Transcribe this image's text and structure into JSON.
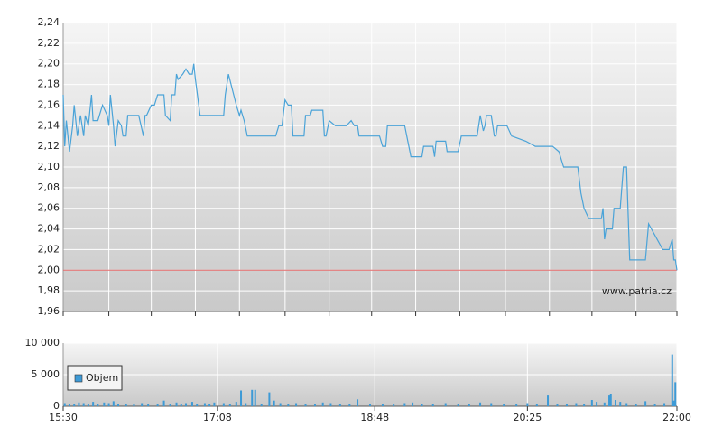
{
  "chart_data": [
    {
      "type": "line",
      "x": [
        "15:30",
        "15:31",
        "15:32",
        "15:34",
        "15:36",
        "15:37",
        "15:39",
        "15:41",
        "15:43",
        "15:44",
        "15:46",
        "15:48",
        "15:49",
        "15:51",
        "15:52",
        "15:55",
        "15:58",
        "15:59",
        "16:00",
        "16:02",
        "16:03",
        "16:05",
        "16:07",
        "16:08",
        "16:10",
        "16:11",
        "16:18",
        "16:21",
        "16:22",
        "16:23",
        "16:26",
        "16:28",
        "16:30",
        "16:34",
        "16:35",
        "16:38",
        "16:39",
        "16:41",
        "16:42",
        "16:43",
        "16:46",
        "16:48",
        "16:50",
        "16:52",
        "16:53",
        "16:54",
        "16:57",
        "17:12",
        "17:13",
        "17:15",
        "17:20",
        "17:22",
        "17:23",
        "17:25",
        "17:27",
        "17:45",
        "17:47",
        "17:49",
        "17:51",
        "17:53",
        "17:55",
        "17:56",
        "18:03",
        "18:04",
        "18:07",
        "18:08",
        "18:15",
        "18:16",
        "18:17",
        "18:19",
        "18:23",
        "18:30",
        "18:33",
        "18:35",
        "18:37",
        "18:38",
        "18:51",
        "18:53",
        "18:55",
        "18:56",
        "19:07",
        "19:11",
        "19:18",
        "19:19",
        "19:25",
        "19:26",
        "19:27",
        "19:33",
        "19:34",
        "19:41",
        "19:43",
        "19:53",
        "19:55",
        "19:57",
        "19:58",
        "19:59",
        "20:02",
        "20:04",
        "20:05",
        "20:06",
        "20:12",
        "20:15",
        "20:24",
        "20:30",
        "20:34",
        "20:41",
        "20:45",
        "20:48",
        "20:57",
        "20:59",
        "21:01",
        "21:04",
        "21:12",
        "21:13",
        "21:14",
        "21:15",
        "21:19",
        "21:20",
        "21:24",
        "21:26",
        "21:28",
        "21:30",
        "21:40",
        "21:42",
        "21:51",
        "21:55",
        "21:57",
        "21:58",
        "21:59",
        "22:00"
      ],
      "values": [
        2.17,
        2.12,
        2.145,
        2.115,
        2.14,
        2.16,
        2.13,
        2.15,
        2.13,
        2.15,
        2.14,
        2.17,
        2.145,
        2.145,
        2.145,
        2.16,
        2.15,
        2.14,
        2.17,
        2.14,
        2.12,
        2.145,
        2.14,
        2.13,
        2.13,
        2.15,
        2.15,
        2.13,
        2.15,
        2.15,
        2.16,
        2.16,
        2.17,
        2.17,
        2.15,
        2.145,
        2.17,
        2.17,
        2.19,
        2.185,
        2.19,
        2.195,
        2.19,
        2.19,
        2.2,
        2.185,
        2.15,
        2.15,
        2.17,
        2.19,
        2.16,
        2.15,
        2.155,
        2.145,
        2.13,
        2.13,
        2.14,
        2.14,
        2.165,
        2.16,
        2.16,
        2.13,
        2.13,
        2.15,
        2.15,
        2.155,
        2.155,
        2.13,
        2.13,
        2.145,
        2.14,
        2.14,
        2.145,
        2.14,
        2.14,
        2.13,
        2.13,
        2.12,
        2.12,
        2.14,
        2.14,
        2.11,
        2.11,
        2.12,
        2.12,
        2.11,
        2.125,
        2.125,
        2.115,
        2.115,
        2.13,
        2.13,
        2.15,
        2.135,
        2.14,
        2.15,
        2.15,
        2.13,
        2.13,
        2.14,
        2.14,
        2.13,
        2.125,
        2.12,
        2.12,
        2.12,
        2.115,
        2.1,
        2.1,
        2.075,
        2.06,
        2.05,
        2.05,
        2.06,
        2.03,
        2.04,
        2.04,
        2.06,
        2.06,
        2.1,
        2.1,
        2.01,
        2.01,
        2.045,
        2.02,
        2.02,
        2.03,
        2.01,
        2.01,
        2.0
      ],
      "color": "#4aa3d8",
      "xlim": [
        "15:30",
        "22:00"
      ],
      "xticks": [
        "15:30",
        "15:59",
        "16:26",
        "16:54",
        "17:22",
        "17:51",
        "18:19",
        "18:46",
        "19:14",
        "19:42",
        "20:11",
        "20:39",
        "21:06",
        "21:34",
        "22:00"
      ],
      "ylim": [
        1.96,
        2.24
      ],
      "yticks": [
        {
          "value": 1.96,
          "label": "1,96"
        },
        {
          "value": 1.98,
          "label": "1,98"
        },
        {
          "value": 2.0,
          "label": "2,00"
        },
        {
          "value": 2.02,
          "label": "2,02"
        },
        {
          "value": 2.04,
          "label": "2,04"
        },
        {
          "value": 2.06,
          "label": "2,06"
        },
        {
          "value": 2.08,
          "label": "2,08"
        },
        {
          "value": 2.1,
          "label": "2,10"
        },
        {
          "value": 2.12,
          "label": "2,12"
        },
        {
          "value": 2.14,
          "label": "2,14"
        },
        {
          "value": 2.16,
          "label": "2,16"
        },
        {
          "value": 2.18,
          "label": "2,18"
        },
        {
          "value": 2.2,
          "label": "2,20"
        },
        {
          "value": 2.22,
          "label": "2,22"
        },
        {
          "value": 2.24,
          "label": "2,24"
        }
      ],
      "reference_line": {
        "value": 2.0,
        "color": "#e06666"
      },
      "grid": true,
      "watermark": "www.patria.cz"
    },
    {
      "type": "bar",
      "x": [
        "15:31",
        "15:34",
        "15:37",
        "15:40",
        "15:43",
        "15:46",
        "15:49",
        "15:52",
        "15:56",
        "15:59",
        "16:02",
        "16:05",
        "16:10",
        "16:15",
        "16:20",
        "16:24",
        "16:30",
        "16:34",
        "16:38",
        "16:42",
        "16:45",
        "16:48",
        "16:52",
        "16:55",
        "17:00",
        "17:03",
        "17:06",
        "17:12",
        "17:16",
        "17:20",
        "17:23",
        "17:26",
        "17:30",
        "17:32",
        "17:36",
        "17:41",
        "17:44",
        "17:48",
        "17:53",
        "17:58",
        "18:04",
        "18:10",
        "18:15",
        "18:20",
        "18:26",
        "18:32",
        "18:37",
        "18:45",
        "18:53",
        "19:00",
        "19:07",
        "19:12",
        "19:18",
        "19:25",
        "19:33",
        "19:41",
        "19:48",
        "19:55",
        "20:02",
        "20:10",
        "20:18",
        "20:25",
        "20:31",
        "20:38",
        "20:44",
        "20:50",
        "20:56",
        "21:01",
        "21:06",
        "21:09",
        "21:14",
        "21:17",
        "21:18",
        "21:21",
        "21:24",
        "21:28",
        "21:34",
        "21:40",
        "21:46",
        "21:52",
        "21:57",
        "21:58",
        "21:59"
      ],
      "series": [
        {
          "name": "Objem",
          "color": "#3d9ad6",
          "values": [
            500,
            400,
            300,
            600,
            500,
            300,
            700,
            400,
            600,
            500,
            800,
            300,
            400,
            300,
            500,
            400,
            300,
            900,
            400,
            600,
            300,
            500,
            700,
            400,
            500,
            300,
            600,
            500,
            400,
            700,
            2500,
            500,
            2600,
            2600,
            400,
            2200,
            900,
            500,
            400,
            500,
            300,
            400,
            600,
            500,
            400,
            300,
            1100,
            300,
            400,
            300,
            500,
            600,
            300,
            400,
            500,
            300,
            400,
            600,
            500,
            300,
            400,
            500,
            300,
            1700,
            400,
            300,
            500,
            400,
            1000,
            700,
            600,
            1700,
            2000,
            1000,
            700,
            500,
            300,
            800,
            400,
            500,
            8200,
            900,
            3800
          ]
        }
      ],
      "xlim": [
        "15:30",
        "22:00"
      ],
      "xticks": [
        "15:30",
        "17:08",
        "18:48",
        "20:25",
        "22:00"
      ],
      "ylim": [
        0,
        10000
      ],
      "yticks": [
        0,
        {
          "value": 5000,
          "label": "5 000"
        },
        {
          "value": 10000,
          "label": "10 000"
        }
      ],
      "grid": true,
      "legend": "lower-left"
    }
  ]
}
